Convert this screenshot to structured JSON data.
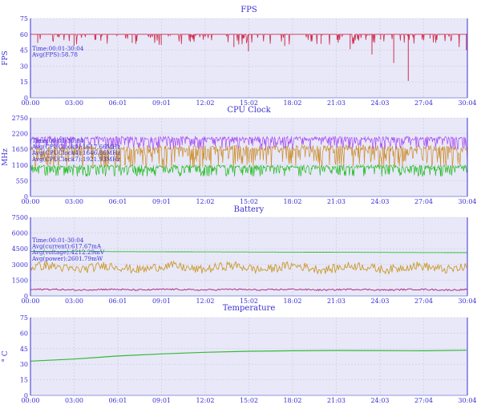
{
  "x_ticks": [
    "00:00",
    "03:00",
    "06:01",
    "09:01",
    "12:02",
    "15:02",
    "18:02",
    "21:03",
    "24:03",
    "27:04",
    "30:04"
  ],
  "charts": [
    {
      "title": "FPS",
      "ylabel": "FPS",
      "yticks": [
        "0",
        "15",
        "30",
        "45",
        "60",
        "75"
      ],
      "annotations": [
        "Time:00:01-30:04",
        "Avg(FPS):58.78"
      ],
      "annotation_color": "#3b2fd1"
    },
    {
      "title": "CPU Clock",
      "ylabel": "MHz",
      "yticks": [
        "0",
        "550",
        "1100",
        "1650",
        "2200",
        "2750"
      ],
      "annotations": [
        "Time:00:01-30:04",
        "Avg(CPUClock0):1617.66MHz",
        "Avg(CPUClock4):1646.86MHz",
        "Avg(CPUClock7):1921.93MHz"
      ],
      "annotation_color": "#3b2fd1"
    },
    {
      "title": "Battery",
      "ylabel": "",
      "yticks": [
        "0",
        "1500",
        "3000",
        "4500",
        "6000",
        "7500"
      ],
      "annotations": [
        "Time:00:01-30:04",
        "Avg(current):617.67mA",
        "Avg(voltage):4212.29mV",
        "Avg(power):2601.79mW"
      ],
      "annotation_color": "#3b2fd1"
    },
    {
      "title": "Temperature",
      "ylabel": "° C",
      "yticks": [
        "0",
        "15",
        "30",
        "45",
        "60",
        "75"
      ],
      "annotations": [],
      "annotation_color": "#3b2fd1"
    }
  ],
  "chart_data": [
    {
      "type": "line",
      "title": "FPS",
      "ylabel": "FPS",
      "xlim": [
        "00:00",
        "30:04"
      ],
      "ylim": [
        0,
        75
      ],
      "grid": true,
      "series": [
        {
          "values_summary": "mostly 60",
          "color": "#d0304f",
          "x_min": [
            0,
            0.5,
            3,
            4.5,
            7,
            9,
            11,
            14,
            15,
            17.5,
            20,
            22,
            23.5,
            24.1,
            25,
            26,
            27.5,
            29.5,
            30
          ],
          "values": [
            60,
            52,
            49,
            55,
            52,
            50,
            53,
            48,
            44,
            49,
            51,
            46,
            41,
            55,
            33,
            16,
            56,
            48,
            45
          ]
        }
      ]
    },
    {
      "type": "line",
      "title": "CPU Clock",
      "ylabel": "MHz",
      "xlim": [
        "00:00",
        "30:04"
      ],
      "ylim": [
        0,
        2750
      ],
      "grid": true,
      "series": [
        {
          "name": "CPUClock0",
          "color": "#22bb22",
          "approx_range": [
            700,
            1100
          ]
        },
        {
          "name": "CPUClock4",
          "color": "#cc8d2a",
          "approx_range": [
            1000,
            1800
          ]
        },
        {
          "name": "CPUClock7",
          "color": "#a64bf4",
          "approx_range": [
            1650,
            2100
          ]
        }
      ]
    },
    {
      "type": "line",
      "title": "Battery",
      "xlim": [
        "00:00",
        "30:04"
      ],
      "ylim": [
        0,
        7500
      ],
      "grid": true,
      "series": [
        {
          "name": "voltage",
          "color": "#33bb33",
          "start": 4250,
          "end": 4130
        },
        {
          "name": "power",
          "color": "#cc9a2a",
          "approx_range": [
            2100,
            3300
          ]
        },
        {
          "name": "current",
          "color": "#a8207a",
          "approx_range": [
            500,
            700
          ]
        }
      ]
    },
    {
      "type": "line",
      "title": "Temperature",
      "ylabel": "° C",
      "xlim": [
        "00:00",
        "30:04"
      ],
      "ylim": [
        0,
        75
      ],
      "grid": true,
      "series": [
        {
          "color": "#33bb33",
          "x_min": [
            0,
            3,
            6,
            9,
            12,
            15,
            18,
            21,
            24,
            27,
            30
          ],
          "values": [
            33,
            35,
            38,
            40,
            41.5,
            42.5,
            43,
            43.3,
            43.2,
            43,
            43.5
          ]
        }
      ]
    }
  ]
}
